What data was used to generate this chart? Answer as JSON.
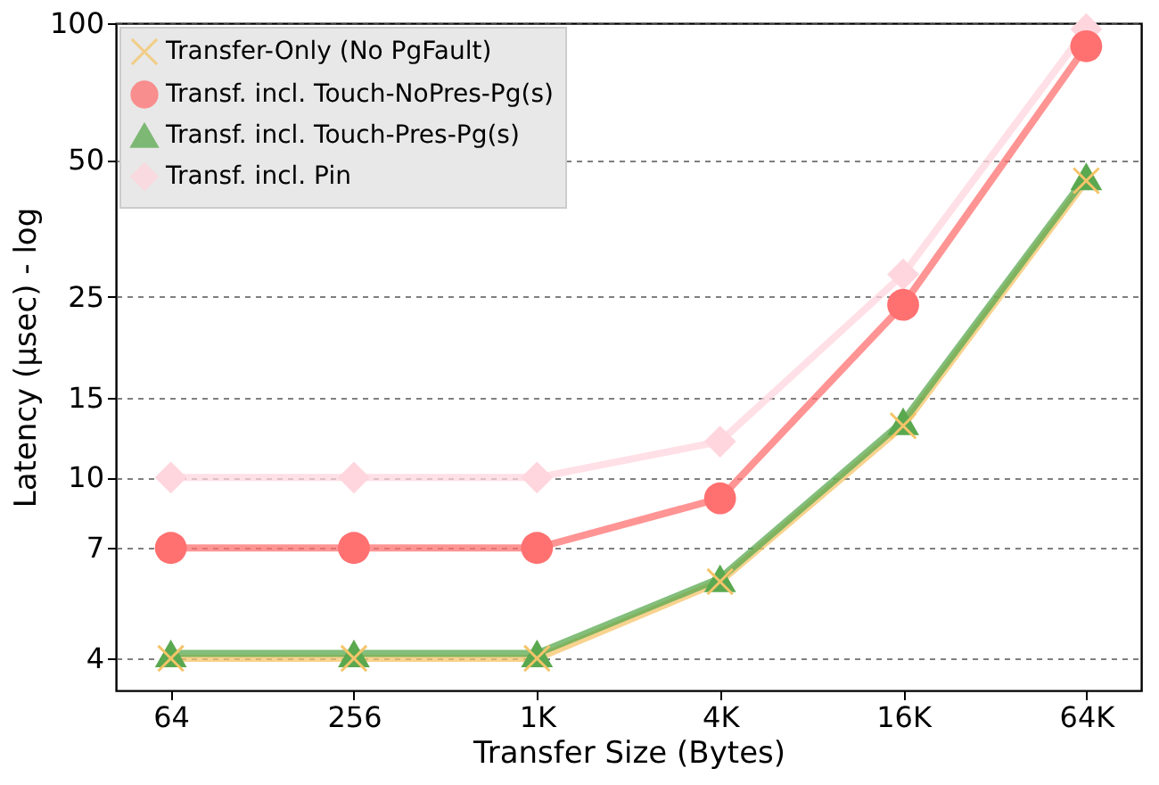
{
  "chart_data": {
    "type": "line",
    "xlabel": "Transfer Size (Bytes)",
    "ylabel": "Latency (μsec) - log",
    "categories": [
      "64",
      "256",
      "1K",
      "4K",
      "16K",
      "64K"
    ],
    "series": [
      {
        "name": "Transfer-Only (No PgFault)",
        "color": "#f5c46a",
        "marker": "cross",
        "values": [
          4.0,
          4.0,
          4.0,
          5.9,
          13.0,
          45.0
        ]
      },
      {
        "name": "Transf. incl. Touch-NoPres-Pg(s)",
        "color": "#ff7070",
        "marker": "circle",
        "values": [
          7.0,
          7.0,
          7.0,
          9.0,
          24.0,
          89.0
        ]
      },
      {
        "name": "Transf. incl. Touch-Pres-Pg(s)",
        "color": "#5aa84f",
        "marker": "triangle",
        "values": [
          4.1,
          4.1,
          4.1,
          6.0,
          13.3,
          46.0
        ]
      },
      {
        "name": "Transf. incl. Pin",
        "color": "#ffd6de",
        "marker": "diamond",
        "values": [
          10.0,
          10.0,
          10.0,
          12.0,
          28.0,
          97.0
        ]
      }
    ],
    "log": "y",
    "ylim": [
      3.4,
      100
    ],
    "yticks": [
      4,
      7,
      10,
      15,
      25,
      50,
      100
    ],
    "grid": "y",
    "line_style": "solid",
    "legend": "top left"
  }
}
